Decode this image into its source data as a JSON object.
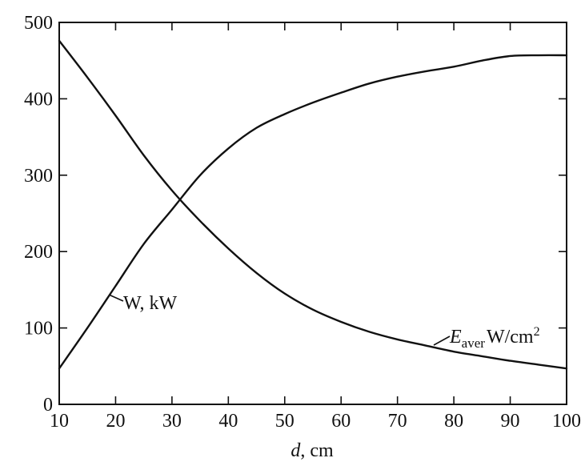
{
  "chart_data": {
    "type": "line",
    "title": "",
    "xlabel": {
      "italic": "d",
      "rest": ", cm"
    },
    "ylabel": "",
    "xlim": [
      10,
      100
    ],
    "ylim": [
      0,
      500
    ],
    "xticks": [
      10,
      20,
      30,
      40,
      50,
      60,
      70,
      80,
      90,
      100
    ],
    "yticks": [
      0,
      100,
      200,
      300,
      400,
      500
    ],
    "grid": false,
    "legend": "none",
    "series": [
      {
        "name": "W, kW",
        "x": [
          10,
          15,
          20,
          25,
          30,
          35,
          40,
          45,
          50,
          55,
          60,
          65,
          70,
          75,
          80,
          85,
          90,
          95,
          100
        ],
        "values": [
          47,
          100,
          155,
          210,
          255,
          300,
          335,
          362,
          380,
          395,
          408,
          420,
          429,
          436,
          442,
          450,
          456,
          457,
          457
        ]
      },
      {
        "name": "E_aver W/cm2",
        "x": [
          10,
          15,
          20,
          25,
          30,
          35,
          40,
          45,
          50,
          55,
          60,
          65,
          70,
          75,
          80,
          85,
          90,
          95,
          100
        ],
        "values": [
          476,
          428,
          378,
          326,
          280,
          240,
          204,
          172,
          145,
          124,
          108,
          95,
          85,
          77,
          69,
          63,
          57,
          52,
          47
        ]
      }
    ],
    "annotations": {
      "w_label": "W, kW",
      "e_label": {
        "symbol": "E",
        "subscript": "aver",
        "unit": "W/cm",
        "superscript": "2"
      }
    }
  }
}
